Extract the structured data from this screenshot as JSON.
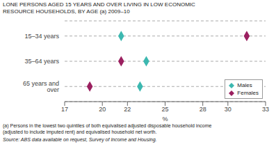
{
  "chart_data": {
    "type": "scatter",
    "title": "LONE PERSONS AGED 15 YEARS AND OVER LIVING IN LOW ECONOMIC\nRESOURCE HOUSEHOLDS, BY AGE (a) 2009–10",
    "categories": [
      "15–34 years",
      "35–64 years",
      "65 years and over"
    ],
    "xlabel": "%",
    "xlim": [
      17,
      33
    ],
    "xticks": [
      17,
      20,
      22,
      25,
      28,
      30,
      33
    ],
    "series": [
      {
        "name": "Males",
        "color": "#3cb8b0",
        "marker": "diamond",
        "values": [
          21.5,
          23.5,
          23.0
        ]
      },
      {
        "name": "Females",
        "color": "#9b2060",
        "marker": "diamond",
        "values": [
          31.5,
          21.5,
          19.0
        ]
      }
    ],
    "grid": true,
    "legend": "lower right",
    "footnotes": [
      "(a) Persons in the lowest two quintiles of both equivalised adjusted disposable household income",
      "(adjusted to include imputed rent) and equivalised household net worth."
    ],
    "source": "Source: ABS data available on request, Survey of Income and Housing."
  }
}
